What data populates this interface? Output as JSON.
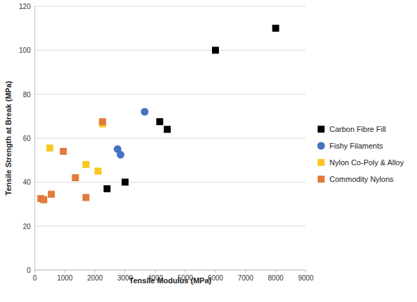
{
  "chart_data": {
    "type": "scatter",
    "x_label": "Tensile Modulus (MPa)",
    "y_label": "Tensile Strength at Break (MPa)",
    "xlim": [
      0,
      9000
    ],
    "xticks": [
      0,
      1000,
      2000,
      3000,
      4000,
      5000,
      6000,
      7000,
      8000,
      9000
    ],
    "ylim": [
      0,
      120
    ],
    "yticks": [
      0,
      20,
      40,
      60,
      80,
      100,
      120
    ],
    "grid": true,
    "legend": "right",
    "series": [
      {
        "name": "Carbon Fibre Fill",
        "color": "#000000",
        "marker": "square",
        "x": [
          2400,
          3000,
          4150,
          4400,
          6000,
          8000
        ],
        "values": [
          37,
          40,
          67.5,
          64,
          100,
          110
        ]
      },
      {
        "name": "Fishy Filaments",
        "color": "#4472c4",
        "marker": "circle",
        "x": [
          2750,
          2850,
          3650
        ],
        "values": [
          55,
          52.5,
          72
        ]
      },
      {
        "name": "Nylon Co-Poly & Alloy",
        "color": "#f9c623",
        "marker": "square",
        "x": [
          500,
          1700,
          2100,
          2250
        ],
        "values": [
          55.5,
          48,
          45,
          66.5
        ]
      },
      {
        "name": "Commodity Nylons",
        "color": "#e07b39",
        "marker": "square",
        "x": [
          200,
          300,
          550,
          950,
          1350,
          1700,
          2250
        ],
        "values": [
          32.5,
          32,
          34.5,
          54,
          42,
          33,
          67.5
        ]
      }
    ]
  }
}
